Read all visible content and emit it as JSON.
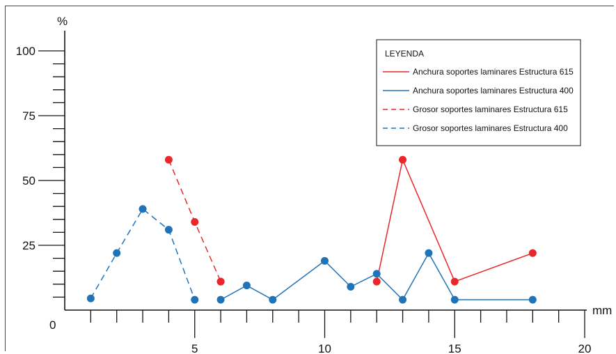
{
  "chart_data": {
    "type": "line",
    "x_unit": "mm",
    "y_unit": "%",
    "xlim": [
      0,
      20
    ],
    "ylim": [
      0,
      100
    ],
    "origin_label": "0",
    "x_major_ticks": [
      5,
      10,
      15,
      20
    ],
    "x_minor_ticks": [
      1,
      2,
      3,
      4,
      6,
      7,
      8,
      9,
      11,
      12,
      13,
      14,
      16,
      17,
      18,
      19
    ],
    "y_major_ticks": [
      25,
      50,
      75,
      100
    ],
    "grid": false,
    "legend": {
      "title": "LEYENDA",
      "placement": "top-right"
    },
    "series": [
      {
        "name": "Anchura soportes laminares Estructura 615",
        "color": "#e8262b",
        "style": "solid",
        "points": [
          [
            6,
            11
          ],
          [
            12,
            11
          ],
          [
            13,
            58
          ],
          [
            15,
            11
          ],
          [
            18,
            22
          ]
        ],
        "connect": [
          [
            12,
            11
          ],
          [
            13,
            58
          ],
          [
            15,
            11
          ],
          [
            18,
            22
          ]
        ]
      },
      {
        "name": "Anchura soportes laminares Estructura 400",
        "color": "#1f73b8",
        "style": "solid",
        "points": [
          [
            6,
            4
          ],
          [
            7,
            9.5
          ],
          [
            8,
            4
          ],
          [
            10,
            19
          ],
          [
            11,
            9
          ],
          [
            12,
            14
          ],
          [
            13,
            4
          ],
          [
            14,
            22
          ],
          [
            15,
            4
          ],
          [
            18,
            4
          ]
        ],
        "connect": [
          [
            6,
            4
          ],
          [
            7,
            9.5
          ],
          [
            8,
            4
          ],
          [
            10,
            19
          ],
          [
            11,
            9
          ],
          [
            12,
            14
          ],
          [
            13,
            4
          ],
          [
            14,
            22
          ],
          [
            15,
            4
          ],
          [
            18,
            4
          ]
        ]
      },
      {
        "name": "Grosor soportes laminares Estructura 615",
        "color": "#e8262b",
        "style": "dashed",
        "points": [
          [
            4,
            58
          ],
          [
            5,
            34
          ],
          [
            6,
            11
          ]
        ],
        "connect": [
          [
            4,
            58
          ],
          [
            5,
            34
          ],
          [
            6,
            11
          ]
        ]
      },
      {
        "name": "Grosor soportes laminares Estructura 400",
        "color": "#1f73b8",
        "style": "dashed",
        "points": [
          [
            1,
            4.5
          ],
          [
            2,
            22
          ],
          [
            3,
            39
          ],
          [
            4,
            31
          ],
          [
            5,
            4
          ]
        ],
        "connect": [
          [
            1,
            4.5
          ],
          [
            2,
            22
          ],
          [
            3,
            39
          ],
          [
            4,
            31
          ],
          [
            5,
            4
          ]
        ]
      }
    ]
  }
}
